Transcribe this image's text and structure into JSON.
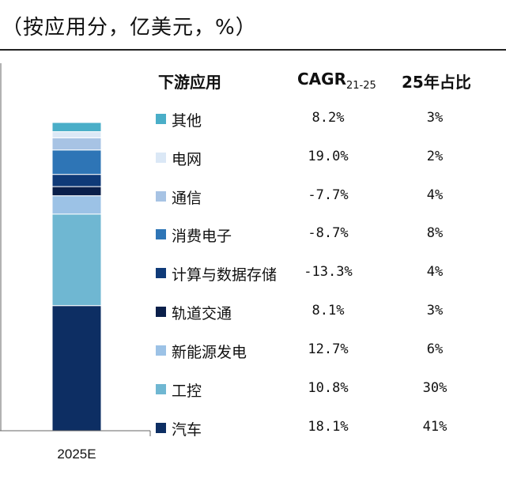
{
  "title": "（按应用分，亿美元，%）",
  "headers": {
    "category": "下游应用",
    "cagr_main": "CAGR",
    "cagr_sub": "21-25",
    "share": "25年占比"
  },
  "chart_data": {
    "type": "bar",
    "stacked": true,
    "categories": [
      "2025E"
    ],
    "series": [
      {
        "name": "汽车",
        "values": [
          41
        ],
        "color": "#0d2e63"
      },
      {
        "name": "工控",
        "values": [
          30
        ],
        "color": "#6fb7d2"
      },
      {
        "name": "新能源发电",
        "values": [
          6
        ],
        "color": "#9cc2e6"
      },
      {
        "name": "轨道交通",
        "values": [
          3
        ],
        "color": "#0a1f4a"
      },
      {
        "name": "计算与数据存储",
        "values": [
          4
        ],
        "color": "#0f3a78"
      },
      {
        "name": "消费电子",
        "values": [
          8
        ],
        "color": "#2e75b6"
      },
      {
        "name": "通信",
        "values": [
          4
        ],
        "color": "#a7c3e4"
      },
      {
        "name": "电网",
        "values": [
          2
        ],
        "color": "#dbe8f6"
      },
      {
        "name": "其他",
        "values": [
          3
        ],
        "color": "#4aaec8"
      }
    ]
  },
  "rows": [
    {
      "name": "其他",
      "cagr": "8.2%",
      "share": "3%",
      "color": "#4aaec8"
    },
    {
      "name": "电网",
      "cagr": "19.0%",
      "share": "2%",
      "color": "#dbe8f6"
    },
    {
      "name": "通信",
      "cagr": "-7.7%",
      "share": "4%",
      "color": "#a7c3e4"
    },
    {
      "name": "消费电子",
      "cagr": "-8.7%",
      "share": "8%",
      "color": "#2e75b6"
    },
    {
      "name": "计算与数据存储",
      "cagr": "-13.3%",
      "share": "4%",
      "color": "#0f3a78"
    },
    {
      "name": "轨道交通",
      "cagr": "8.1%",
      "share": "3%",
      "color": "#0a1f4a"
    },
    {
      "name": "新能源发电",
      "cagr": "12.7%",
      "share": "6%",
      "color": "#9cc2e6"
    },
    {
      "name": "工控",
      "cagr": "10.8%",
      "share": "30%",
      "color": "#6fb7d2"
    },
    {
      "name": "汽车",
      "cagr": "18.1%",
      "share": "41%",
      "color": "#0d2e63"
    }
  ]
}
